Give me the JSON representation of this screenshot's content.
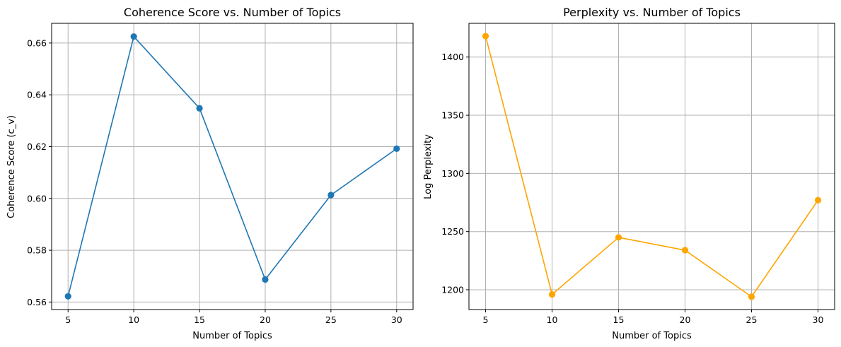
{
  "chart_data": [
    {
      "type": "line",
      "title": "Coherence Score vs. Number of Topics",
      "xlabel": "Number of Topics",
      "ylabel": "Coherence Score (c_v)",
      "x": [
        5,
        10,
        15,
        20,
        25,
        30
      ],
      "series": [
        {
          "color": "#1f77b4",
          "marker": "circle",
          "values": [
            0.5622,
            0.6625,
            0.6348,
            0.5687,
            0.6013,
            0.6192
          ]
        }
      ],
      "xlim": [
        3.75,
        31.25
      ],
      "ylim": [
        0.5571,
        0.6676
      ],
      "xticks": [
        5,
        10,
        15,
        20,
        25,
        30
      ],
      "yticks": [
        0.56,
        0.58,
        0.6,
        0.62,
        0.64,
        0.66
      ],
      "ytick_labels": [
        "0.56",
        "0.58",
        "0.60",
        "0.62",
        "0.64",
        "0.66"
      ],
      "grid": true
    },
    {
      "type": "line",
      "title": "Perplexity vs. Number of Topics",
      "xlabel": "Number of Topics",
      "ylabel": "Log Perplexity",
      "x": [
        5,
        10,
        15,
        20,
        25,
        30
      ],
      "series": [
        {
          "color": "#ffa500",
          "marker": "circle",
          "values": [
            1418,
            1196,
            1245,
            1234,
            1194,
            1277
          ]
        }
      ],
      "xlim": [
        3.75,
        31.25
      ],
      "ylim": [
        1183,
        1429
      ],
      "xticks": [
        5,
        10,
        15,
        20,
        25,
        30
      ],
      "yticks": [
        1200,
        1250,
        1300,
        1350,
        1400
      ],
      "ytick_labels": [
        "1200",
        "1250",
        "1300",
        "1350",
        "1400"
      ],
      "grid": true
    }
  ]
}
